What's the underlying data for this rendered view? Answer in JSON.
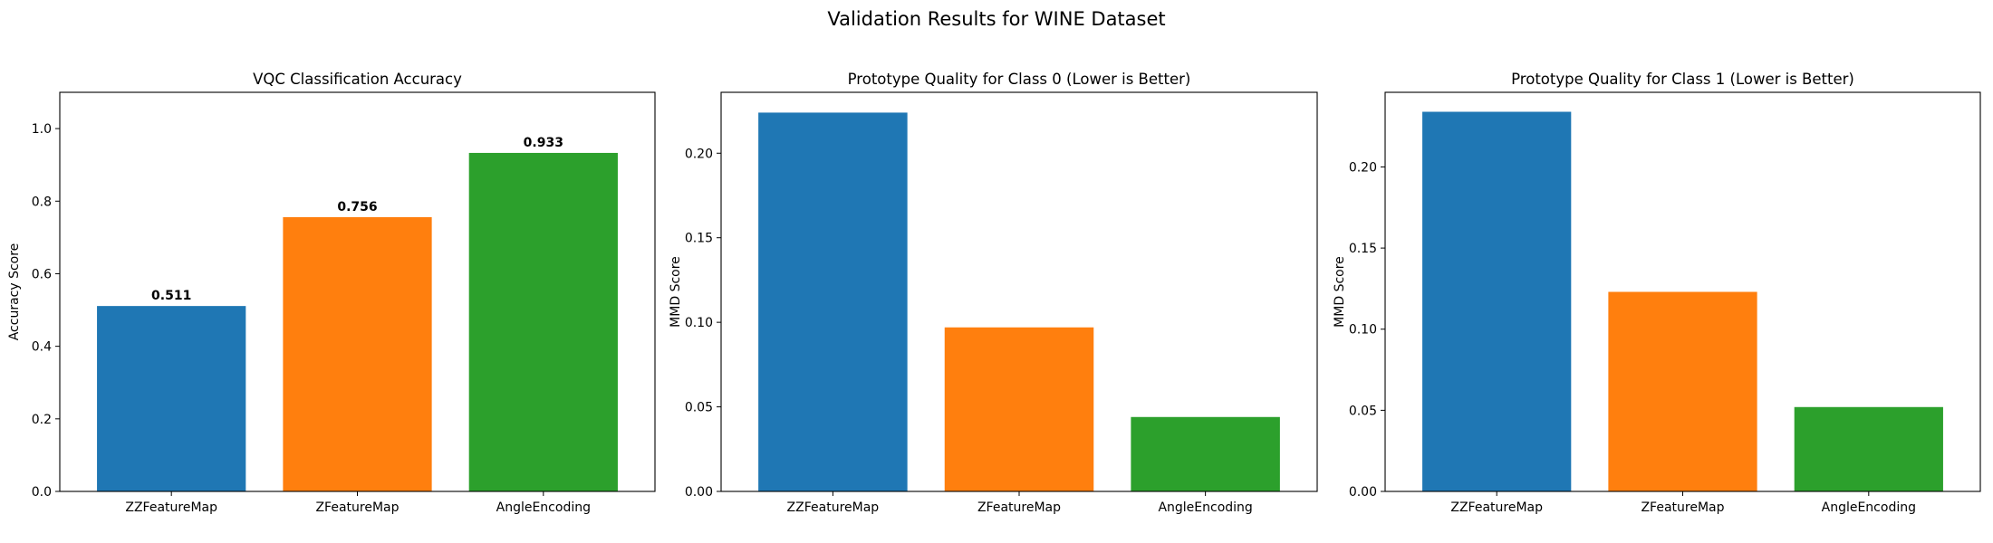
{
  "suptitle": "Validation Results for WINE Dataset",
  "colors": [
    "#1f77b4",
    "#ff7f0e",
    "#2ca02c"
  ],
  "chart_data": [
    {
      "type": "bar",
      "title": "VQC Classification Accuracy",
      "xlabel": "",
      "ylabel": "Accuracy Score",
      "categories": [
        "ZZFeatureMap",
        "ZFeatureMap",
        "AngleEncoding"
      ],
      "values": [
        0.511,
        0.756,
        0.933
      ],
      "value_labels": [
        "0.511",
        "0.756",
        "0.933"
      ],
      "ylim": [
        0,
        1.1
      ],
      "yticks": [
        0.0,
        0.2,
        0.4,
        0.6,
        0.8,
        1.0
      ],
      "ytick_labels": [
        "0.0",
        "0.2",
        "0.4",
        "0.6",
        "0.8",
        "1.0"
      ],
      "grid": false,
      "legend": false
    },
    {
      "type": "bar",
      "title": "Prototype Quality for Class 0 (Lower is Better)",
      "xlabel": "",
      "ylabel": "MMD Score",
      "categories": [
        "ZZFeatureMap",
        "ZFeatureMap",
        "AngleEncoding"
      ],
      "values": [
        0.224,
        0.097,
        0.044
      ],
      "ylim": [
        0,
        0.236
      ],
      "yticks": [
        0.0,
        0.05,
        0.1,
        0.15,
        0.2
      ],
      "ytick_labels": [
        "0.00",
        "0.05",
        "0.10",
        "0.15",
        "0.20"
      ],
      "grid": false,
      "legend": false
    },
    {
      "type": "bar",
      "title": "Prototype Quality for Class 1 (Lower is Better)",
      "xlabel": "",
      "ylabel": "MMD Score",
      "categories": [
        "ZZFeatureMap",
        "ZFeatureMap",
        "AngleEncoding"
      ],
      "values": [
        0.234,
        0.123,
        0.052
      ],
      "ylim": [
        0,
        0.246
      ],
      "yticks": [
        0.0,
        0.05,
        0.1,
        0.15,
        0.2
      ],
      "ytick_labels": [
        "0.00",
        "0.05",
        "0.10",
        "0.15",
        "0.20"
      ],
      "grid": false,
      "legend": false
    }
  ]
}
